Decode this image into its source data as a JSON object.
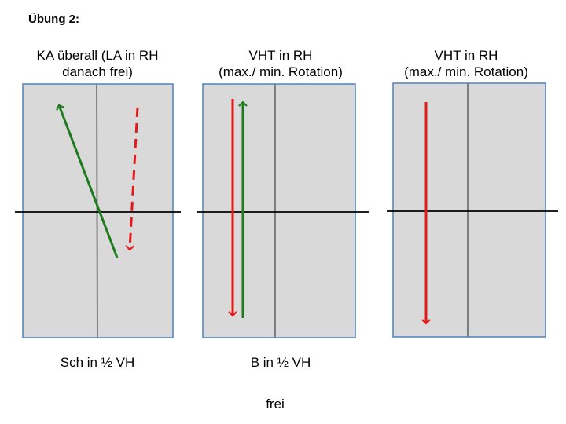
{
  "heading": "Übung 2:",
  "panels": [
    {
      "title_line1": "KA überall (LA in RH",
      "title_line2": "danach frei)",
      "subtitle": "Sch in ½ VH"
    },
    {
      "title_line1": "VHT in RH",
      "title_line2": "(max./ min. Rotation)",
      "subtitle": "B in ½ VH"
    },
    {
      "title_line1": "VHT in RH",
      "title_line2": "(max./ min. Rotation)",
      "subtitle": ""
    }
  ],
  "footer": "frei",
  "colors": {
    "panel_fill": "#d9d9d9",
    "panel_border": "#4f81bd",
    "center_line": "#7f7f7f",
    "green_arrow": "#1e7b1e",
    "red_arrow": "#e41a1a"
  }
}
